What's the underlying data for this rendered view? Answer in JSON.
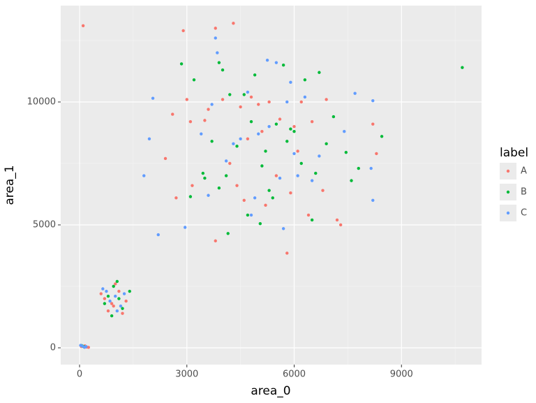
{
  "chart_data": {
    "type": "scatter",
    "x_label": "area_0",
    "y_label": "area_1",
    "legend_title": "label",
    "legend_position": "right",
    "grid": true,
    "xlim": [
      -527,
      11239
    ],
    "ylim": [
      -682,
      13920
    ],
    "xticks": [
      0,
      3000,
      6000,
      9000
    ],
    "yticks": [
      0,
      5000,
      10000
    ],
    "xminor": [
      1500,
      4500,
      7500,
      10500
    ],
    "yminor": [
      2500,
      7500,
      12500
    ],
    "series": [
      {
        "name": "A",
        "color": "#F8766D",
        "x": [
          100,
          2900,
          3800,
          4300,
          2600,
          2400,
          2700,
          3100,
          3000,
          5800,
          7300,
          7200,
          3800,
          8200,
          8300,
          3150,
          3600,
          4000,
          4500,
          4800,
          5000,
          5300,
          5600,
          6000,
          6200,
          6500,
          6900,
          4200,
          4700,
          5100,
          5500,
          5900,
          6400,
          6800,
          3500,
          4600,
          5200,
          6100,
          4400,
          50,
          150,
          200,
          250,
          700,
          900,
          1100,
          800,
          1000,
          1300,
          600,
          1200,
          950
        ],
        "y": [
          13100,
          12900,
          13000,
          13200,
          9500,
          7700,
          6100,
          9200,
          10100,
          3850,
          5000,
          5200,
          4350,
          9100,
          7900,
          6600,
          9700,
          10100,
          9800,
          10200,
          9900,
          10000,
          9300,
          9000,
          10000,
          9200,
          10100,
          7500,
          8500,
          8800,
          7000,
          6300,
          5400,
          6400,
          9250,
          6000,
          5800,
          8000,
          6600,
          50,
          80,
          30,
          20,
          2000,
          1800,
          2300,
          1500,
          2600,
          1900,
          2200,
          1400,
          1700
        ]
      },
      {
        "name": "B",
        "color": "#00BA38",
        "x": [
          10700,
          2850,
          3200,
          3900,
          4000,
          6700,
          8450,
          7800,
          7450,
          4150,
          5050,
          3100,
          3450,
          3700,
          4200,
          4600,
          4900,
          5200,
          5500,
          5700,
          6000,
          6300,
          6600,
          7100,
          4400,
          4800,
          5300,
          5800,
          6200,
          6900,
          3500,
          4100,
          5100,
          5900,
          6500,
          7600,
          3900,
          4700,
          5400,
          100,
          120,
          60,
          800,
          950,
          1050,
          700,
          1200,
          1400,
          900,
          1100
        ],
        "y": [
          11400,
          11550,
          10900,
          11600,
          11300,
          11200,
          8600,
          7300,
          7950,
          4650,
          5050,
          6150,
          7100,
          8400,
          10300,
          10300,
          11100,
          8000,
          9100,
          11500,
          8800,
          10900,
          7100,
          9400,
          8200,
          9200,
          6400,
          8400,
          7500,
          8300,
          6900,
          7000,
          7400,
          8900,
          5200,
          6800,
          6500,
          5400,
          6100,
          60,
          40,
          90,
          2100,
          2500,
          2700,
          1800,
          1600,
          2300,
          1300,
          2000
        ]
      },
      {
        "name": "C",
        "color": "#619CFF",
        "x": [
          2050,
          1950,
          1800,
          2200,
          2950,
          3800,
          3850,
          5250,
          7700,
          8200,
          8150,
          8200,
          5700,
          3600,
          4300,
          4700,
          5000,
          5500,
          5900,
          6300,
          6700,
          7400,
          3400,
          4100,
          4800,
          5300,
          6100,
          6500,
          3700,
          4500,
          5600,
          6000,
          4900,
          5800,
          80,
          140,
          180,
          30,
          750,
          850,
          1000,
          1150,
          650,
          1250,
          1050
        ],
        "y": [
          10150,
          8500,
          7000,
          4600,
          4900,
          12600,
          12000,
          11700,
          10350,
          10050,
          7300,
          6000,
          4850,
          6200,
          8300,
          10400,
          8700,
          11600,
          10800,
          10200,
          7800,
          8800,
          8700,
          7600,
          5400,
          9000,
          7000,
          6800,
          9900,
          8500,
          6900,
          7900,
          6100,
          10000,
          70,
          20,
          50,
          100,
          2300,
          1900,
          2100,
          1700,
          2400,
          2200,
          1500
        ]
      }
    ]
  }
}
